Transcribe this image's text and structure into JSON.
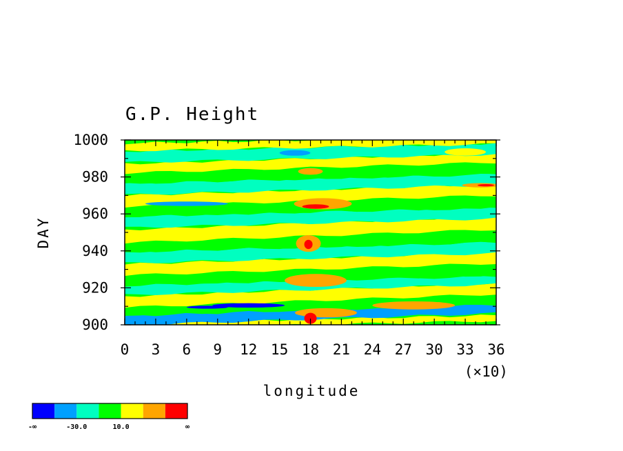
{
  "chart_data": {
    "type": "heatmap",
    "title": "G.P. Height",
    "xlabel": "longitude",
    "ylabel": "DAY",
    "x_multiplier_label": "(×10)",
    "xlim": [
      0,
      36
    ],
    "ylim": [
      900,
      1000
    ],
    "x_ticks": [
      "0",
      "3",
      "6",
      "9",
      "12",
      "15",
      "18",
      "21",
      "24",
      "27",
      "30",
      "33",
      "36"
    ],
    "y_ticks": [
      "900",
      "920",
      "940",
      "960",
      "980",
      "1000"
    ],
    "colorbar": {
      "colors": [
        "#0000ff",
        "#00a0ff",
        "#00ffc0",
        "#00ff00",
        "#ffff00",
        "#ffa500",
        "#ff0000"
      ],
      "labels": [
        "-∞",
        "-30.0",
        "10.0",
        "∞"
      ]
    },
    "bands": [
      {
        "y0": 900,
        "y1": 903,
        "level": 4,
        "slope": 0.12
      },
      {
        "y0": 903,
        "y1": 908,
        "level": 1,
        "slope": 0.18
      },
      {
        "y0": 908,
        "y1": 913,
        "level": 3,
        "slope": 0.15
      },
      {
        "y0": 913,
        "y1": 919,
        "level": 4,
        "slope": 0.2
      },
      {
        "y0": 919,
        "y1": 924,
        "level": 2,
        "slope": 0.16
      },
      {
        "y0": 924,
        "y1": 930,
        "level": 3,
        "slope": 0.12
      },
      {
        "y0": 930,
        "y1": 936,
        "level": 4,
        "slope": 0.18
      },
      {
        "y0": 936,
        "y1": 942,
        "level": 2,
        "slope": 0.15
      },
      {
        "y0": 942,
        "y1": 948,
        "level": 3,
        "slope": 0.14
      },
      {
        "y0": 948,
        "y1": 955,
        "level": 4,
        "slope": 0.2
      },
      {
        "y0": 955,
        "y1": 961,
        "level": 2,
        "slope": 0.14
      },
      {
        "y0": 961,
        "y1": 967,
        "level": 3,
        "slope": 0.12
      },
      {
        "y0": 967,
        "y1": 973,
        "level": 4,
        "slope": 0.17
      },
      {
        "y0": 973,
        "y1": 979,
        "level": 2,
        "slope": 0.15
      },
      {
        "y0": 979,
        "y1": 985,
        "level": 3,
        "slope": 0.13
      },
      {
        "y0": 985,
        "y1": 990,
        "level": 4,
        "slope": 0.16
      },
      {
        "y0": 990,
        "y1": 996,
        "level": 2,
        "slope": 0.12
      },
      {
        "y0": 996,
        "y1": 1000,
        "level": 4,
        "slope": 0.1
      }
    ],
    "blobs": [
      {
        "x": 12.0,
        "y": 910.5,
        "rx": 3.5,
        "ry": 1.2,
        "level": 0
      },
      {
        "x": 8.0,
        "y": 909.5,
        "rx": 2.0,
        "ry": 0.8,
        "level": 0
      },
      {
        "x": 28.0,
        "y": 910.5,
        "rx": 4.0,
        "ry": 2.2,
        "level": 5
      },
      {
        "x": 19.5,
        "y": 906.5,
        "rx": 3.0,
        "ry": 2.5,
        "level": 5
      },
      {
        "x": 18.0,
        "y": 903.5,
        "rx": 0.6,
        "ry": 3.0,
        "level": 6
      },
      {
        "x": 18.5,
        "y": 924.0,
        "rx": 3.0,
        "ry": 3.5,
        "level": 5
      },
      {
        "x": 17.8,
        "y": 944.0,
        "rx": 1.2,
        "ry": 4.5,
        "level": 5
      },
      {
        "x": 17.8,
        "y": 943.5,
        "rx": 0.4,
        "ry": 2.5,
        "level": 6
      },
      {
        "x": 19.2,
        "y": 965.5,
        "rx": 2.8,
        "ry": 3.0,
        "level": 5
      },
      {
        "x": 18.5,
        "y": 964.0,
        "rx": 1.3,
        "ry": 1.2,
        "level": 6
      },
      {
        "x": 18.0,
        "y": 983.0,
        "rx": 1.2,
        "ry": 1.8,
        "level": 5
      },
      {
        "x": 34.5,
        "y": 975.5,
        "rx": 1.8,
        "ry": 1.2,
        "level": 5
      },
      {
        "x": 35.0,
        "y": 975.5,
        "rx": 0.8,
        "ry": 0.6,
        "level": 6
      },
      {
        "x": 16.5,
        "y": 993.0,
        "rx": 1.5,
        "ry": 1.5,
        "level": 1
      },
      {
        "x": 6.0,
        "y": 965.5,
        "rx": 4.0,
        "ry": 1.2,
        "level": 1
      },
      {
        "x": 33.0,
        "y": 993.5,
        "rx": 2.0,
        "ry": 2.0,
        "level": 4
      }
    ]
  }
}
